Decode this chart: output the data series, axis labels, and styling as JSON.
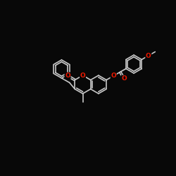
{
  "bg_color": "#080808",
  "bond_color": "#c8c8c8",
  "oxygen_color": "#ee1800",
  "lw": 1.2,
  "dbo": 0.048,
  "figsize": [
    2.5,
    2.5
  ],
  "dpi": 100,
  "bl": 0.52,
  "xlim": [
    -1.0,
    9.0
  ],
  "ylim": [
    1.2,
    8.8
  ]
}
